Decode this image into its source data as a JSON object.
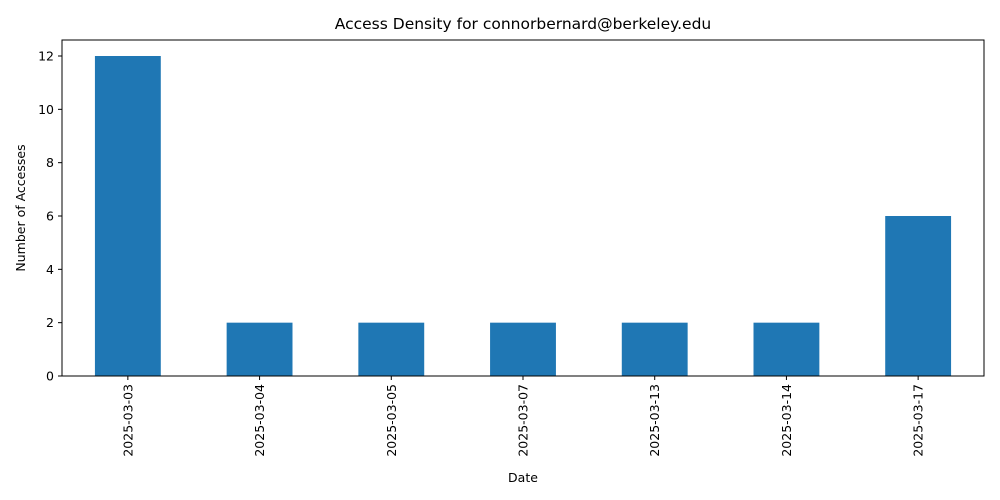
{
  "chart_data": {
    "type": "bar",
    "title": "Access Density for connorbernard@berkeley.edu",
    "xlabel": "Date",
    "ylabel": "Number of Accesses",
    "categories": [
      "2025-03-03",
      "2025-03-04",
      "2025-03-05",
      "2025-03-07",
      "2025-03-13",
      "2025-03-14",
      "2025-03-17"
    ],
    "values": [
      12,
      2,
      2,
      2,
      2,
      2,
      6
    ],
    "ylim": [
      0,
      12.6
    ],
    "yticks": [
      0,
      2,
      4,
      6,
      8,
      10,
      12
    ],
    "bar_color": "#1f77b4",
    "grid": false,
    "legend": "none"
  }
}
